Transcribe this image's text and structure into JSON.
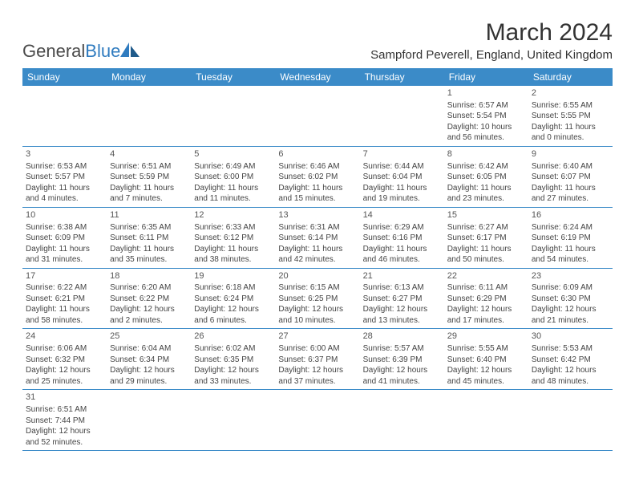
{
  "logo": {
    "text1": "General",
    "text2": "Blue"
  },
  "title": "March 2024",
  "location": "Sampford Peverell, England, United Kingdom",
  "colors": {
    "header_bg": "#3b8bc8",
    "header_text": "#ffffff",
    "border": "#3b8bc8",
    "logo_gray": "#4a4a4a",
    "logo_blue": "#2f7bbf",
    "text": "#444444"
  },
  "daysOfWeek": [
    "Sunday",
    "Monday",
    "Tuesday",
    "Wednesday",
    "Thursday",
    "Friday",
    "Saturday"
  ],
  "weeks": [
    [
      null,
      null,
      null,
      null,
      null,
      {
        "n": "1",
        "sr": "Sunrise: 6:57 AM",
        "ss": "Sunset: 5:54 PM",
        "d1": "Daylight: 10 hours",
        "d2": "and 56 minutes."
      },
      {
        "n": "2",
        "sr": "Sunrise: 6:55 AM",
        "ss": "Sunset: 5:55 PM",
        "d1": "Daylight: 11 hours",
        "d2": "and 0 minutes."
      }
    ],
    [
      {
        "n": "3",
        "sr": "Sunrise: 6:53 AM",
        "ss": "Sunset: 5:57 PM",
        "d1": "Daylight: 11 hours",
        "d2": "and 4 minutes."
      },
      {
        "n": "4",
        "sr": "Sunrise: 6:51 AM",
        "ss": "Sunset: 5:59 PM",
        "d1": "Daylight: 11 hours",
        "d2": "and 7 minutes."
      },
      {
        "n": "5",
        "sr": "Sunrise: 6:49 AM",
        "ss": "Sunset: 6:00 PM",
        "d1": "Daylight: 11 hours",
        "d2": "and 11 minutes."
      },
      {
        "n": "6",
        "sr": "Sunrise: 6:46 AM",
        "ss": "Sunset: 6:02 PM",
        "d1": "Daylight: 11 hours",
        "d2": "and 15 minutes."
      },
      {
        "n": "7",
        "sr": "Sunrise: 6:44 AM",
        "ss": "Sunset: 6:04 PM",
        "d1": "Daylight: 11 hours",
        "d2": "and 19 minutes."
      },
      {
        "n": "8",
        "sr": "Sunrise: 6:42 AM",
        "ss": "Sunset: 6:05 PM",
        "d1": "Daylight: 11 hours",
        "d2": "and 23 minutes."
      },
      {
        "n": "9",
        "sr": "Sunrise: 6:40 AM",
        "ss": "Sunset: 6:07 PM",
        "d1": "Daylight: 11 hours",
        "d2": "and 27 minutes."
      }
    ],
    [
      {
        "n": "10",
        "sr": "Sunrise: 6:38 AM",
        "ss": "Sunset: 6:09 PM",
        "d1": "Daylight: 11 hours",
        "d2": "and 31 minutes."
      },
      {
        "n": "11",
        "sr": "Sunrise: 6:35 AM",
        "ss": "Sunset: 6:11 PM",
        "d1": "Daylight: 11 hours",
        "d2": "and 35 minutes."
      },
      {
        "n": "12",
        "sr": "Sunrise: 6:33 AM",
        "ss": "Sunset: 6:12 PM",
        "d1": "Daylight: 11 hours",
        "d2": "and 38 minutes."
      },
      {
        "n": "13",
        "sr": "Sunrise: 6:31 AM",
        "ss": "Sunset: 6:14 PM",
        "d1": "Daylight: 11 hours",
        "d2": "and 42 minutes."
      },
      {
        "n": "14",
        "sr": "Sunrise: 6:29 AM",
        "ss": "Sunset: 6:16 PM",
        "d1": "Daylight: 11 hours",
        "d2": "and 46 minutes."
      },
      {
        "n": "15",
        "sr": "Sunrise: 6:27 AM",
        "ss": "Sunset: 6:17 PM",
        "d1": "Daylight: 11 hours",
        "d2": "and 50 minutes."
      },
      {
        "n": "16",
        "sr": "Sunrise: 6:24 AM",
        "ss": "Sunset: 6:19 PM",
        "d1": "Daylight: 11 hours",
        "d2": "and 54 minutes."
      }
    ],
    [
      {
        "n": "17",
        "sr": "Sunrise: 6:22 AM",
        "ss": "Sunset: 6:21 PM",
        "d1": "Daylight: 11 hours",
        "d2": "and 58 minutes."
      },
      {
        "n": "18",
        "sr": "Sunrise: 6:20 AM",
        "ss": "Sunset: 6:22 PM",
        "d1": "Daylight: 12 hours",
        "d2": "and 2 minutes."
      },
      {
        "n": "19",
        "sr": "Sunrise: 6:18 AM",
        "ss": "Sunset: 6:24 PM",
        "d1": "Daylight: 12 hours",
        "d2": "and 6 minutes."
      },
      {
        "n": "20",
        "sr": "Sunrise: 6:15 AM",
        "ss": "Sunset: 6:25 PM",
        "d1": "Daylight: 12 hours",
        "d2": "and 10 minutes."
      },
      {
        "n": "21",
        "sr": "Sunrise: 6:13 AM",
        "ss": "Sunset: 6:27 PM",
        "d1": "Daylight: 12 hours",
        "d2": "and 13 minutes."
      },
      {
        "n": "22",
        "sr": "Sunrise: 6:11 AM",
        "ss": "Sunset: 6:29 PM",
        "d1": "Daylight: 12 hours",
        "d2": "and 17 minutes."
      },
      {
        "n": "23",
        "sr": "Sunrise: 6:09 AM",
        "ss": "Sunset: 6:30 PM",
        "d1": "Daylight: 12 hours",
        "d2": "and 21 minutes."
      }
    ],
    [
      {
        "n": "24",
        "sr": "Sunrise: 6:06 AM",
        "ss": "Sunset: 6:32 PM",
        "d1": "Daylight: 12 hours",
        "d2": "and 25 minutes."
      },
      {
        "n": "25",
        "sr": "Sunrise: 6:04 AM",
        "ss": "Sunset: 6:34 PM",
        "d1": "Daylight: 12 hours",
        "d2": "and 29 minutes."
      },
      {
        "n": "26",
        "sr": "Sunrise: 6:02 AM",
        "ss": "Sunset: 6:35 PM",
        "d1": "Daylight: 12 hours",
        "d2": "and 33 minutes."
      },
      {
        "n": "27",
        "sr": "Sunrise: 6:00 AM",
        "ss": "Sunset: 6:37 PM",
        "d1": "Daylight: 12 hours",
        "d2": "and 37 minutes."
      },
      {
        "n": "28",
        "sr": "Sunrise: 5:57 AM",
        "ss": "Sunset: 6:39 PM",
        "d1": "Daylight: 12 hours",
        "d2": "and 41 minutes."
      },
      {
        "n": "29",
        "sr": "Sunrise: 5:55 AM",
        "ss": "Sunset: 6:40 PM",
        "d1": "Daylight: 12 hours",
        "d2": "and 45 minutes."
      },
      {
        "n": "30",
        "sr": "Sunrise: 5:53 AM",
        "ss": "Sunset: 6:42 PM",
        "d1": "Daylight: 12 hours",
        "d2": "and 48 minutes."
      }
    ],
    [
      {
        "n": "31",
        "sr": "Sunrise: 6:51 AM",
        "ss": "Sunset: 7:44 PM",
        "d1": "Daylight: 12 hours",
        "d2": "and 52 minutes."
      },
      null,
      null,
      null,
      null,
      null,
      null
    ]
  ]
}
